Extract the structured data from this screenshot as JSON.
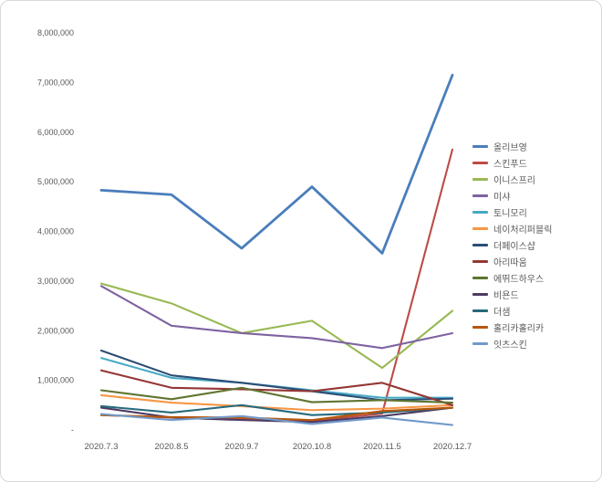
{
  "chart_data": {
    "type": "line",
    "title": "",
    "xlabel": "",
    "ylabel": "",
    "ylim": [
      0,
      8000000
    ],
    "grid": false,
    "legend_position": "right",
    "x": [
      "2020.7.3",
      "2020.8.5",
      "2020.9.7",
      "2020.10.8",
      "2020.11.5",
      "2020.12.7"
    ],
    "y_ticks": [
      {
        "value": 0,
        "label": "-"
      },
      {
        "value": 1000000,
        "label": "1,000,000"
      },
      {
        "value": 2000000,
        "label": "2,000,000"
      },
      {
        "value": 3000000,
        "label": "3,000,000"
      },
      {
        "value": 4000000,
        "label": "4,000,000"
      },
      {
        "value": 5000000,
        "label": "5,000,000"
      },
      {
        "value": 6000000,
        "label": "6,000,000"
      },
      {
        "value": 7000000,
        "label": "7,000,000"
      },
      {
        "value": 8000000,
        "label": "8,000,000"
      }
    ],
    "series": [
      {
        "name": "올리브영",
        "color": "#4a7ebb",
        "values": [
          4830000,
          4740000,
          3660000,
          4900000,
          3560000,
          7150000
        ]
      },
      {
        "name": "스킨푸드",
        "color": "#be4b48",
        "values": [
          300000,
          250000,
          220000,
          180000,
          330000,
          5650000
        ]
      },
      {
        "name": "이니스프리",
        "color": "#98b954",
        "values": [
          2950000,
          2550000,
          1950000,
          2200000,
          1250000,
          2400000
        ]
      },
      {
        "name": "미샤",
        "color": "#7e63a1",
        "values": [
          2900000,
          2100000,
          1950000,
          1850000,
          1650000,
          1950000
        ]
      },
      {
        "name": "토니모리",
        "color": "#46aac5",
        "values": [
          1450000,
          1050000,
          950000,
          800000,
          650000,
          650000
        ]
      },
      {
        "name": "네이처리퍼블릭",
        "color": "#f79646",
        "values": [
          700000,
          550000,
          480000,
          400000,
          430000,
          500000
        ]
      },
      {
        "name": "더페이스샵",
        "color": "#2c4d75",
        "values": [
          1600000,
          1100000,
          950000,
          780000,
          600000,
          630000
        ]
      },
      {
        "name": "아리따움",
        "color": "#943735",
        "values": [
          1200000,
          850000,
          820000,
          780000,
          950000,
          500000
        ]
      },
      {
        "name": "에뛰드하우스",
        "color": "#5f7530",
        "values": [
          800000,
          620000,
          850000,
          560000,
          600000,
          550000
        ]
      },
      {
        "name": "비욘드",
        "color": "#4d3b62",
        "values": [
          450000,
          250000,
          200000,
          160000,
          280000,
          450000
        ]
      },
      {
        "name": "더샘",
        "color": "#276a7c",
        "values": [
          480000,
          350000,
          500000,
          300000,
          350000,
          450000
        ]
      },
      {
        "name": "홀리카홀리카",
        "color": "#b65708",
        "values": [
          300000,
          260000,
          250000,
          200000,
          380000,
          450000
        ]
      },
      {
        "name": "잇츠스킨",
        "color": "#729aca",
        "values": [
          320000,
          200000,
          280000,
          120000,
          250000,
          100000
        ]
      }
    ]
  }
}
